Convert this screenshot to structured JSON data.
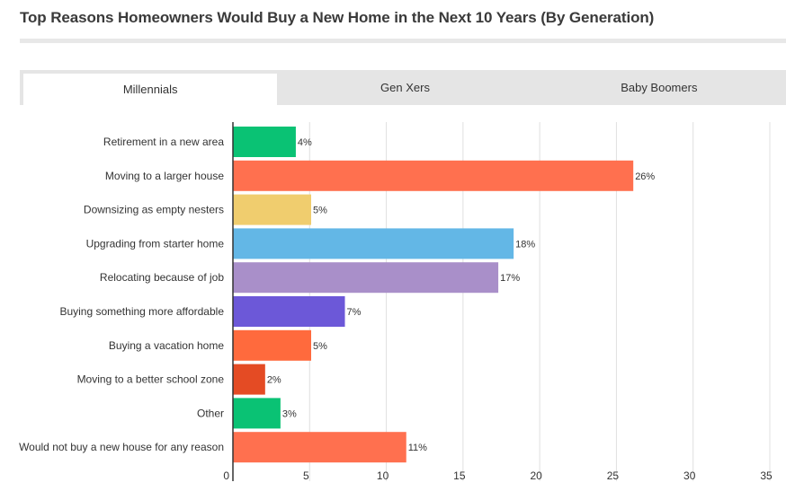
{
  "title": "Top Reasons Homeowners Would Buy a New Home in the Next 10 Years (By Generation)",
  "tabs": [
    {
      "label": "Millennials",
      "active": true
    },
    {
      "label": "Gen Xers",
      "active": false
    },
    {
      "label": "Baby Boomers",
      "active": false
    }
  ],
  "chart_data": {
    "type": "bar",
    "orientation": "horizontal",
    "categories": [
      "Retirement in a new area",
      "Moving to a larger house",
      "Downsizing as empty nesters",
      "Upgrading from starter home",
      "Relocating because of job",
      "Buying something more affordable",
      "Buying a vacation home",
      "Moving to a better school zone",
      "Other",
      "Would not buy a new house for any reason"
    ],
    "values": [
      4.1,
      26.1,
      5.1,
      18.3,
      17.3,
      7.3,
      5.1,
      2.1,
      3.1,
      11.3
    ],
    "value_labels": [
      "4%",
      "26%",
      "5%",
      "18%",
      "17%",
      "7%",
      "5%",
      "2%",
      "3%",
      "11%"
    ],
    "colors": [
      "#0ac274",
      "#ff704f",
      "#f0cd6e",
      "#63b7e6",
      "#a98fc9",
      "#6c58d8",
      "#ff6a3d",
      "#e44b24",
      "#0ac274",
      "#ff704f"
    ],
    "xticks": [
      "0",
      "5",
      "10",
      "15",
      "20",
      "25",
      "30",
      "35"
    ],
    "xlim": [
      0,
      35
    ],
    "grid": true
  }
}
